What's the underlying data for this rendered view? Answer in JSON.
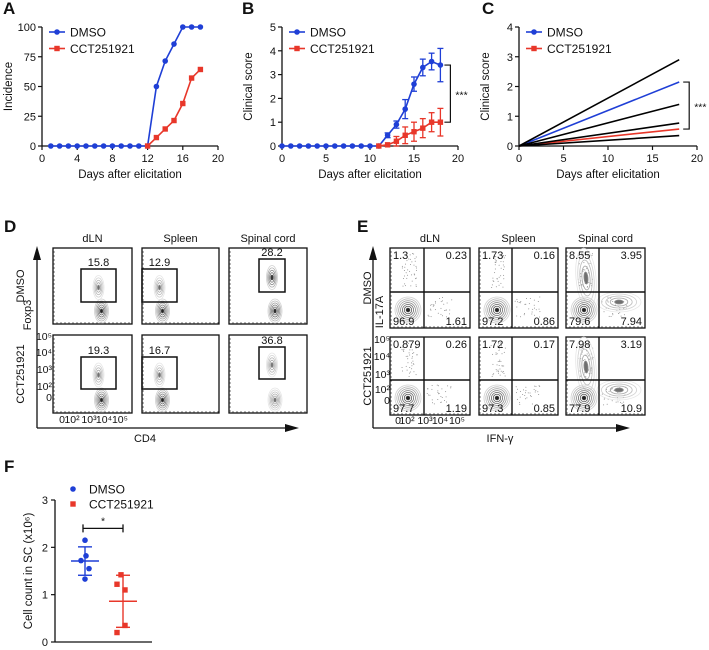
{
  "panel_labels": [
    "A",
    "B",
    "C",
    "D",
    "E",
    "F"
  ],
  "colors": {
    "dmso": "#1f3fd6",
    "cct": "#e8372a",
    "fit_bounds": "#000000"
  },
  "chart_data": [
    {
      "panel": "A",
      "type": "line",
      "xlabel": "Days after elicitation",
      "ylabel": "Incidence",
      "xlim": [
        0,
        20
      ],
      "ylim": [
        0,
        100
      ],
      "xticks": [
        "0",
        "4",
        "8",
        "12",
        "16",
        "20"
      ],
      "yticks": [
        "0",
        "25",
        "50",
        "75",
        "100"
      ],
      "legend": "top-left",
      "series": [
        {
          "name": "DMSO",
          "marker": "circle",
          "x": [
            1,
            2,
            3,
            4,
            5,
            6,
            7,
            8,
            9,
            10,
            11,
            12,
            13,
            14,
            15,
            16,
            17,
            18
          ],
          "y": [
            0,
            0,
            0,
            0,
            0,
            0,
            0,
            0,
            0,
            0,
            0,
            0,
            50,
            71.4,
            85.7,
            100,
            100,
            100
          ]
        },
        {
          "name": "CCT251921",
          "marker": "square",
          "x": [
            12,
            13,
            14,
            15,
            16,
            17,
            18
          ],
          "y": [
            0,
            7.1,
            14.3,
            21.4,
            35.7,
            57.1,
            64.3
          ]
        }
      ]
    },
    {
      "panel": "B",
      "type": "line",
      "xlabel": "Days after elicitation",
      "ylabel": "Clinical score",
      "xlim": [
        0,
        20
      ],
      "ylim": [
        0,
        5
      ],
      "xticks": [
        "0",
        "5",
        "10",
        "15",
        "20"
      ],
      "yticks": [
        "0",
        "1",
        "2",
        "3",
        "4",
        "5"
      ],
      "legend": "top-left",
      "series": [
        {
          "name": "DMSO",
          "marker": "circle",
          "x": [
            0,
            1,
            2,
            3,
            4,
            5,
            6,
            7,
            8,
            9,
            10,
            11,
            12,
            13,
            14,
            15,
            16,
            17,
            18
          ],
          "y": [
            0,
            0,
            0,
            0,
            0,
            0,
            0,
            0,
            0,
            0,
            0,
            0,
            0.45,
            0.9,
            1.55,
            2.6,
            3.3,
            3.55,
            3.4
          ],
          "err": [
            0,
            0,
            0,
            0,
            0,
            0,
            0,
            0,
            0,
            0,
            0,
            0,
            0.1,
            0.15,
            0.4,
            0.3,
            0.35,
            0.35,
            0.7
          ]
        },
        {
          "name": "CCT251921",
          "marker": "square",
          "x": [
            11,
            12,
            13,
            14,
            15,
            16,
            17,
            18
          ],
          "y": [
            0,
            0.05,
            0.2,
            0.45,
            0.6,
            0.75,
            1.0,
            1.0
          ],
          "err": [
            0,
            0,
            0.2,
            0.35,
            0.4,
            0.4,
            0.4,
            0.58
          ]
        }
      ],
      "annotation": {
        "text": "***",
        "between": [
          3.4,
          1.0
        ],
        "at_x": 18
      }
    },
    {
      "panel": "C",
      "type": "line",
      "xlabel": "Days after elicitation",
      "ylabel": "Clinical score",
      "xlim": [
        0,
        20
      ],
      "ylim": [
        0,
        4
      ],
      "xticks": [
        "0",
        "5",
        "10",
        "15",
        "20"
      ],
      "yticks": [
        "0",
        "1",
        "2",
        "3",
        "4"
      ],
      "legend": "top-left",
      "series": [
        {
          "name": "DMSO",
          "x": [
            0,
            18
          ],
          "y": [
            0,
            2.15
          ]
        },
        {
          "name": "CCT251921",
          "x": [
            0,
            18
          ],
          "y": [
            0,
            0.57
          ]
        },
        {
          "x": [
            0,
            18
          ],
          "y": [
            0,
            2.9
          ],
          "role": "bound"
        },
        {
          "x": [
            0,
            18
          ],
          "y": [
            0,
            1.4
          ],
          "role": "bound"
        },
        {
          "x": [
            0,
            18
          ],
          "y": [
            0,
            0.77
          ],
          "role": "bound"
        },
        {
          "x": [
            0,
            18
          ],
          "y": [
            0,
            0.35
          ],
          "role": "bound"
        }
      ],
      "annotation": {
        "text": "***",
        "between": [
          2.15,
          0.57
        ],
        "at_x": 18
      }
    },
    {
      "panel": "D",
      "type": "contour",
      "columns": [
        "dLN",
        "Spleen",
        "Spinal cord"
      ],
      "rows": [
        "DMSO",
        "CCT251921"
      ],
      "xlabel": "CD4",
      "ylabel": "Foxp3",
      "axis_ticks": [
        "0",
        "10²",
        "10³",
        "10⁴",
        "10⁵"
      ],
      "gate_values": [
        [
          "15.8",
          "12.9",
          "28.2"
        ],
        [
          "19.3",
          "16.7",
          "36.8"
        ]
      ]
    },
    {
      "panel": "E",
      "type": "contour",
      "columns": [
        "dLN",
        "Spleen",
        "Spinal cord"
      ],
      "rows": [
        "DMSO",
        "CCT251921"
      ],
      "xlabel": "IFN-γ",
      "ylabel": "IL-17A",
      "axis_ticks": [
        "0",
        "10²",
        "10³",
        "10⁴",
        "10⁵"
      ],
      "quadrant_order": [
        "top-left",
        "top-right",
        "bottom-left",
        "bottom-right"
      ],
      "quadrant_values": [
        [
          [
            "1.3",
            "0.23",
            "96.9",
            "1.61"
          ],
          [
            "1.73",
            "0.16",
            "97.2",
            "0.86"
          ],
          [
            "8.55",
            "3.95",
            "79.6",
            "7.94"
          ]
        ],
        [
          [
            "0.879",
            "0.26",
            "97.7",
            "1.19"
          ],
          [
            "1.72",
            "0.17",
            "97.3",
            "0.85"
          ],
          [
            "7.98",
            "3.19",
            "77.9",
            "10.9"
          ]
        ]
      ]
    },
    {
      "panel": "F",
      "type": "scatter",
      "ylabel": "Cell count in SC (x10⁶)",
      "ylim": [
        0,
        3
      ],
      "yticks": [
        "0",
        "1",
        "2",
        "3"
      ],
      "legend": "top-left",
      "series": [
        {
          "name": "DMSO",
          "marker": "circle",
          "values": [
            2.15,
            1.82,
            1.72,
            1.55,
            1.33
          ],
          "mean": 1.71,
          "sd": 0.3
        },
        {
          "name": "CCT251921",
          "marker": "square",
          "values": [
            1.42,
            1.22,
            1.1,
            0.35,
            0.2
          ],
          "mean": 0.86,
          "sd": 0.55
        }
      ],
      "annotation": {
        "text": "*",
        "y": 2.4
      }
    }
  ]
}
